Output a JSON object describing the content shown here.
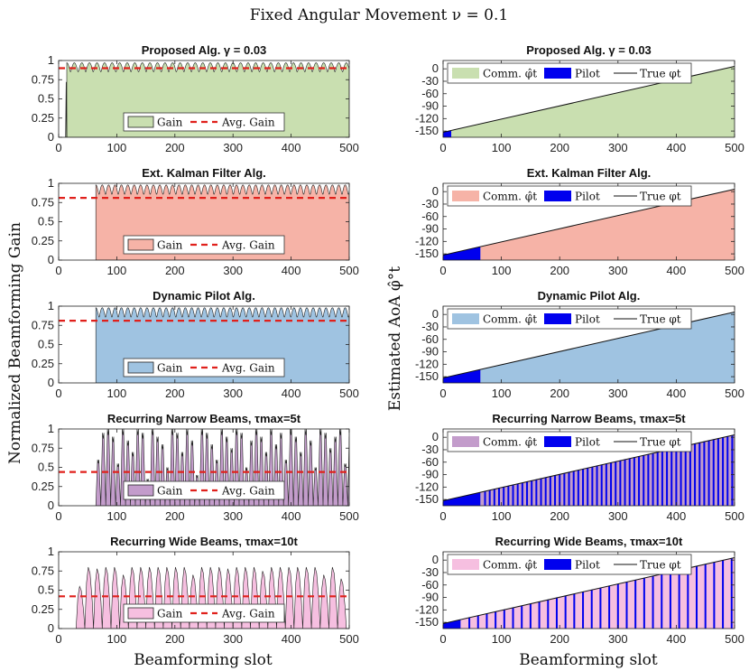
{
  "figure": {
    "title": "Fixed Angular Movement ν = 0.1",
    "left_ylabel": "Normalized Beamforming Gain",
    "right_ylabel": "Estimated AoA φ̂°t",
    "xlabel_left": "Beamforming slot",
    "xlabel_right": "Beamforming slot"
  },
  "colors": {
    "proposed": "#c9dfb0",
    "ekf": "#f6b3a7",
    "dynamic": "#9fc3e1",
    "narrow": "#c39ccb",
    "wide": "#f6bfe0",
    "pilot": "#0000ee",
    "avg": "#e0201b"
  },
  "chart_data": [
    {
      "type": "area",
      "id": "gain-proposed",
      "column": "left",
      "title": "Proposed Alg. γ = 0.03",
      "xlim": [
        0,
        500
      ],
      "ylim": [
        0,
        1
      ],
      "xticks": [
        0,
        100,
        200,
        300,
        400,
        500
      ],
      "yticks": [
        "0",
        "0.25",
        "0.5",
        "0.75",
        "1"
      ],
      "yticks_values": [
        0,
        0.25,
        0.5,
        0.75,
        1
      ],
      "pattern": "ripple",
      "start": 14,
      "period": 13,
      "high": 0.97,
      "low": 0.84,
      "initial_spike": {
        "x": 13,
        "value": 0.72
      },
      "avg_gain": 0.9,
      "legend": [
        "Gain",
        "Avg. Gain"
      ]
    },
    {
      "type": "area",
      "id": "gain-ekf",
      "column": "left",
      "title": "Ext. Kalman Filter Alg.",
      "xlim": [
        0,
        500
      ],
      "ylim": [
        0,
        1
      ],
      "xticks": [
        0,
        100,
        200,
        300,
        400,
        500
      ],
      "yticks": [
        "0",
        "0.25",
        "0.5",
        "0.75",
        "1"
      ],
      "yticks_values": [
        0,
        0.25,
        0.5,
        0.75,
        1
      ],
      "pattern": "ripple",
      "start": 64,
      "period": 11,
      "high": 0.98,
      "low": 0.84,
      "avg_gain": 0.81,
      "legend": [
        "Gain",
        "Avg. Gain"
      ]
    },
    {
      "type": "area",
      "id": "gain-dynamic",
      "column": "left",
      "title": "Dynamic Pilot Alg.",
      "xlim": [
        0,
        500
      ],
      "ylim": [
        0,
        1
      ],
      "xticks": [
        0,
        100,
        200,
        300,
        400,
        500
      ],
      "yticks": [
        "0",
        "0.25",
        "0.5",
        "0.75",
        "1"
      ],
      "yticks_values": [
        0,
        0.25,
        0.5,
        0.75,
        1
      ],
      "pattern": "ripple",
      "start": 64,
      "period": 11,
      "high": 0.98,
      "low": 0.84,
      "avg_gain": 0.81,
      "legend": [
        "Gain",
        "Avg. Gain"
      ]
    },
    {
      "type": "area",
      "id": "gain-narrow",
      "column": "left",
      "title": "Recurring Narrow Beams, τmax=5t",
      "xlim": [
        0,
        500
      ],
      "ylim": [
        0,
        1
      ],
      "xticks": [
        0,
        100,
        200,
        300,
        400,
        500
      ],
      "yticks": [
        "0",
        "0.25",
        "0.5",
        "0.75",
        "1"
      ],
      "yticks_values": [
        0,
        0.25,
        0.5,
        0.75,
        1
      ],
      "pattern": "narrow",
      "start": 64,
      "period": 8.5,
      "peaks": [
        0.6,
        0.95,
        1.0,
        0.9,
        0.55,
        1.0,
        0.85,
        0.7,
        1.0,
        0.95,
        0.35,
        1.0,
        0.9,
        0.8,
        0.5,
        1.0,
        0.95,
        0.7,
        1.0,
        0.85,
        0.4,
        1.0,
        0.95,
        0.8,
        0.6,
        1.0,
        0.9,
        0.75,
        1.0,
        0.95,
        0.5,
        0.85,
        1.0,
        0.9,
        0.7,
        1.0,
        0.8,
        0.95,
        0.6,
        1.0,
        0.9,
        0.7,
        1.0,
        0.85,
        0.5,
        1.0,
        0.95,
        0.75,
        0.9,
        1.0,
        0.55,
        0.9,
        0.8
      ],
      "avg_gain": 0.44,
      "legend": [
        "Gain",
        "Avg. Gain"
      ]
    },
    {
      "type": "area",
      "id": "gain-wide",
      "column": "left",
      "title": "Recurring Wide Beams, τmax=10t",
      "xlim": [
        0,
        500
      ],
      "ylim": [
        0,
        1
      ],
      "xticks": [
        0,
        100,
        200,
        300,
        400,
        500
      ],
      "yticks": [
        "0",
        "0.25",
        "0.5",
        "0.75",
        "1"
      ],
      "yticks_values": [
        0,
        0.25,
        0.5,
        0.75,
        1
      ],
      "pattern": "wide",
      "start": 30,
      "period": 15,
      "peaks": [
        0.55,
        0.8,
        0.78,
        0.8,
        0.8,
        0.7,
        0.8,
        0.8,
        0.8,
        0.8,
        0.8,
        0.8,
        0.8,
        0.7,
        0.8,
        0.8,
        0.8,
        0.78,
        0.8,
        0.8,
        0.8,
        0.75,
        0.8,
        0.8,
        0.8,
        0.8,
        0.8,
        0.8,
        0.7,
        0.8,
        0.65
      ],
      "avg_gain": 0.42,
      "legend": [
        "Gain",
        "Avg. Gain"
      ]
    },
    {
      "type": "area",
      "id": "aoa-proposed",
      "column": "right",
      "title": "Proposed Alg. γ = 0.03",
      "xlim": [
        0,
        500
      ],
      "ylim": [
        -165,
        20
      ],
      "xticks": [
        0,
        100,
        200,
        300,
        400,
        500
      ],
      "yticks": [
        "0",
        "-30",
        "-60",
        "-90",
        "-120",
        "-150"
      ],
      "yticks_values": [
        0,
        -30,
        -60,
        -90,
        -120,
        -150
      ],
      "true_phi": {
        "x": [
          0,
          500
        ],
        "y": [
          -153,
          6
        ]
      },
      "pilot_until": 14,
      "pilot_stripes": 0,
      "legend": [
        "Comm. φ̂t",
        "Pilot",
        "True φt"
      ]
    },
    {
      "type": "area",
      "id": "aoa-ekf",
      "column": "right",
      "title": "Ext. Kalman Filter Alg.",
      "xlim": [
        0,
        500
      ],
      "ylim": [
        -165,
        20
      ],
      "xticks": [
        0,
        100,
        200,
        300,
        400,
        500
      ],
      "yticks": [
        "0",
        "-30",
        "-60",
        "-90",
        "-120",
        "-150"
      ],
      "yticks_values": [
        0,
        -30,
        -60,
        -90,
        -120,
        -150
      ],
      "true_phi": {
        "x": [
          0,
          500
        ],
        "y": [
          -153,
          6
        ]
      },
      "pilot_until": 64,
      "pilot_stripes": 0,
      "legend": [
        "Comm. φ̂t",
        "Pilot",
        "True φt"
      ]
    },
    {
      "type": "area",
      "id": "aoa-dynamic",
      "column": "right",
      "title": "Dynamic Pilot Alg.",
      "xlim": [
        0,
        500
      ],
      "ylim": [
        -165,
        20
      ],
      "xticks": [
        0,
        100,
        200,
        300,
        400,
        500
      ],
      "yticks": [
        "0",
        "-30",
        "-60",
        "-90",
        "-120",
        "-150"
      ],
      "yticks_values": [
        0,
        -30,
        -60,
        -90,
        -120,
        -150
      ],
      "true_phi": {
        "x": [
          0,
          500
        ],
        "y": [
          -153,
          6
        ]
      },
      "pilot_until": 64,
      "pilot_stripes": 0,
      "legend": [
        "Comm. φ̂t",
        "Pilot",
        "True φt"
      ]
    },
    {
      "type": "area",
      "id": "aoa-narrow",
      "column": "right",
      "title": "Recurring Narrow Beams, τmax=5t",
      "xlim": [
        0,
        500
      ],
      "ylim": [
        -165,
        20
      ],
      "xticks": [
        0,
        100,
        200,
        300,
        400,
        500
      ],
      "yticks": [
        "0",
        "-30",
        "-60",
        "-90",
        "-120",
        "-150"
      ],
      "yticks_values": [
        0,
        -30,
        -60,
        -90,
        -120,
        -150
      ],
      "true_phi": {
        "x": [
          0,
          500
        ],
        "y": [
          -153,
          6
        ]
      },
      "pilot_until": 64,
      "pilot_stripes": 8,
      "legend": [
        "Comm. φ̂t",
        "Pilot",
        "True φt"
      ]
    },
    {
      "type": "area",
      "id": "aoa-wide",
      "column": "right",
      "title": "Recurring Wide Beams, τmax=10t",
      "xlim": [
        0,
        500
      ],
      "ylim": [
        -165,
        20
      ],
      "xticks": [
        0,
        100,
        200,
        300,
        400,
        500
      ],
      "yticks": [
        "0",
        "-30",
        "-60",
        "-90",
        "-120",
        "-150"
      ],
      "yticks_values": [
        0,
        -30,
        -60,
        -90,
        -120,
        -150
      ],
      "true_phi": {
        "x": [
          0,
          500
        ],
        "y": [
          -153,
          6
        ]
      },
      "pilot_until": 30,
      "pilot_stripes": 15,
      "legend": [
        "Comm. φ̂t",
        "Pilot",
        "True φt"
      ]
    }
  ]
}
